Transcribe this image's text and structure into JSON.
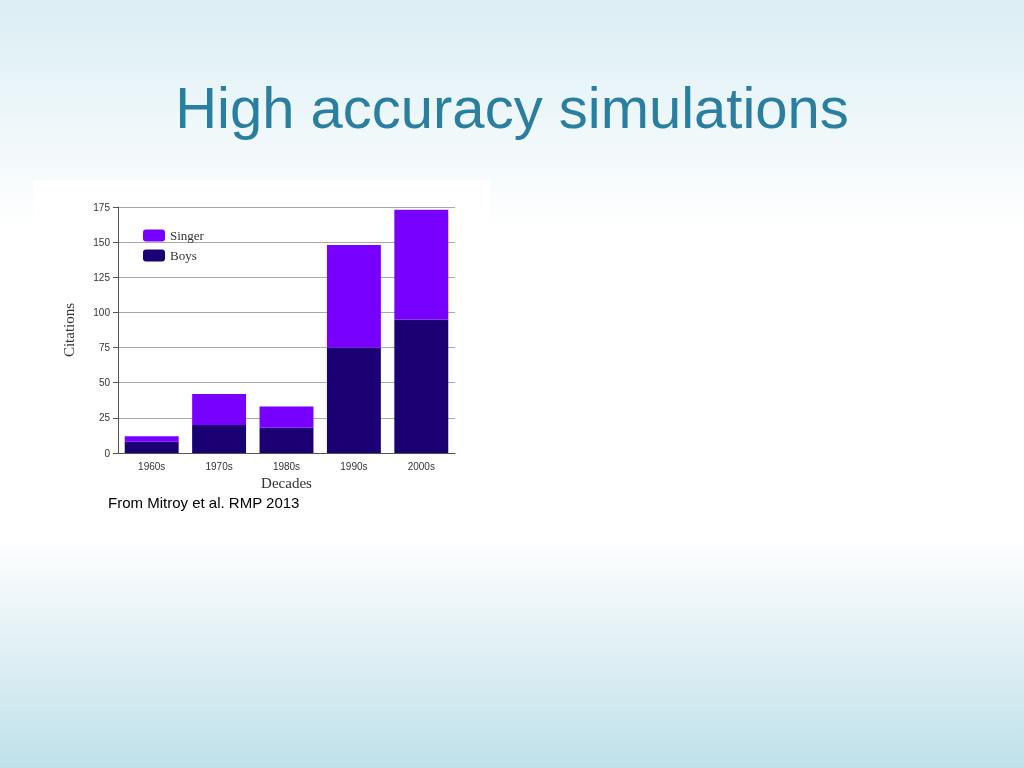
{
  "chart_data": {
    "type": "bar",
    "title": "High accuracy simulations",
    "xlabel": "Decades",
    "ylabel": "Citations",
    "categories": [
      "1960s",
      "1970s",
      "1980s",
      "1990s",
      "2000s"
    ],
    "series": [
      {
        "name": "Boys",
        "color": "#1a0073",
        "values": [
          8,
          20,
          18,
          75,
          95
        ]
      },
      {
        "name": "Singer",
        "color": "#7700ff",
        "values": [
          4,
          22,
          15,
          73,
          78
        ]
      }
    ],
    "stacked": true,
    "ylim": [
      0,
      175
    ],
    "yticks": [
      0,
      25,
      50,
      75,
      100,
      125,
      150,
      175
    ],
    "grid": "y",
    "legend": "top left",
    "annotations": [
      "From Mitroy et al. RMP 2013"
    ]
  }
}
